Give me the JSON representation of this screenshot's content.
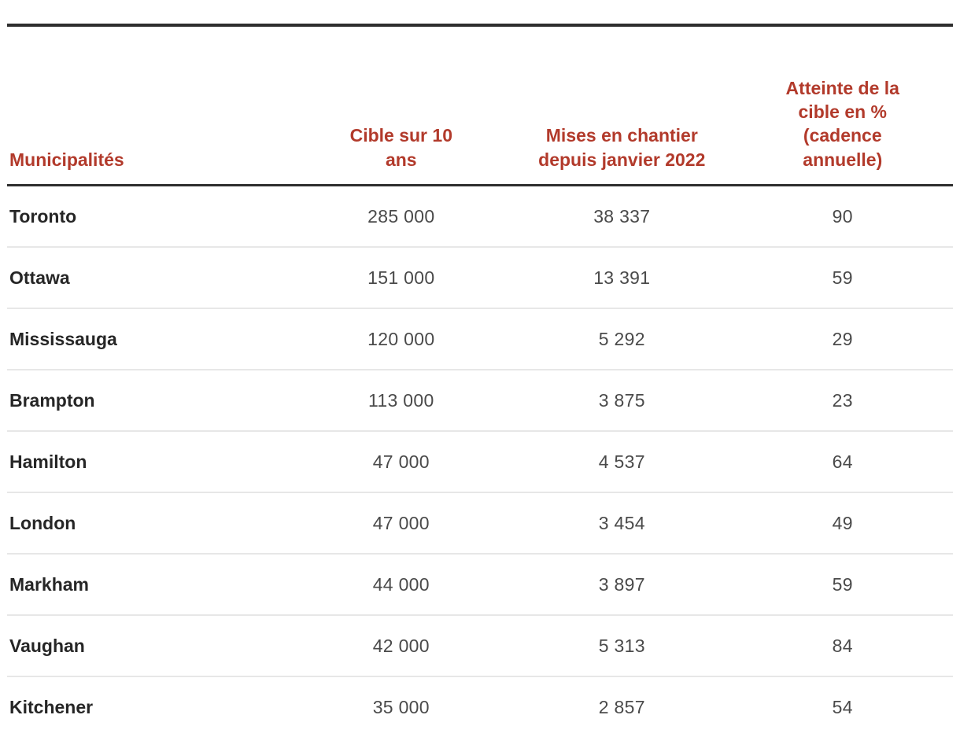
{
  "colors": {
    "header_text": "#b23a2b",
    "heavy_rule": "#2e2e2e",
    "row_divider": "#e7e7e7",
    "municipality_text": "#262626",
    "number_text": "#4a4a4a",
    "background": "#ffffff"
  },
  "table": {
    "columns": [
      "Municipalités",
      "Cible sur 10 ans",
      "Mises en chantier depuis janvier 2022",
      "Atteinte de la cible en % (cadence annuelle)"
    ],
    "rows": [
      [
        "Toronto",
        "285 000",
        "38 337",
        "90"
      ],
      [
        "Ottawa",
        "151 000",
        "13 391",
        "59"
      ],
      [
        "Mississauga",
        "120 000",
        "5 292",
        "29"
      ],
      [
        "Brampton",
        "113 000",
        "3 875",
        "23"
      ],
      [
        "Hamilton",
        "47 000",
        "4 537",
        "64"
      ],
      [
        "London",
        "47 000",
        "3 454",
        "49"
      ],
      [
        "Markham",
        "44 000",
        "3 897",
        "59"
      ],
      [
        "Vaughan",
        "42 000",
        "5 313",
        "84"
      ],
      [
        "Kitchener",
        "35 000",
        "2 857",
        "54"
      ]
    ]
  },
  "chart_data": {
    "type": "table",
    "title": "",
    "columns": [
      "Municipalités",
      "Cible sur 10 ans",
      "Mises en chantier depuis janvier 2022",
      "Atteinte de la cible en % (cadence annuelle)"
    ],
    "rows": [
      {
        "municipalite": "Toronto",
        "cible_10_ans": 285000,
        "mises_en_chantier_depuis_janvier_2022": 38337,
        "atteinte_cible_pct_cadence_annuelle": 90
      },
      {
        "municipalite": "Ottawa",
        "cible_10_ans": 151000,
        "mises_en_chantier_depuis_janvier_2022": 13391,
        "atteinte_cible_pct_cadence_annuelle": 59
      },
      {
        "municipalite": "Mississauga",
        "cible_10_ans": 120000,
        "mises_en_chantier_depuis_janvier_2022": 5292,
        "atteinte_cible_pct_cadence_annuelle": 29
      },
      {
        "municipalite": "Brampton",
        "cible_10_ans": 113000,
        "mises_en_chantier_depuis_janvier_2022": 3875,
        "atteinte_cible_pct_cadence_annuelle": 23
      },
      {
        "municipalite": "Hamilton",
        "cible_10_ans": 47000,
        "mises_en_chantier_depuis_janvier_2022": 4537,
        "atteinte_cible_pct_cadence_annuelle": 64
      },
      {
        "municipalite": "London",
        "cible_10_ans": 47000,
        "mises_en_chantier_depuis_janvier_2022": 3454,
        "atteinte_cible_pct_cadence_annuelle": 49
      },
      {
        "municipalite": "Markham",
        "cible_10_ans": 44000,
        "mises_en_chantier_depuis_janvier_2022": 3897,
        "atteinte_cible_pct_cadence_annuelle": 59
      },
      {
        "municipalite": "Vaughan",
        "cible_10_ans": 42000,
        "mises_en_chantier_depuis_janvier_2022": 5313,
        "atteinte_cible_pct_cadence_annuelle": 84
      },
      {
        "municipalite": "Kitchener",
        "cible_10_ans": 35000,
        "mises_en_chantier_depuis_janvier_2022": 2857,
        "atteinte_cible_pct_cadence_annuelle": 54
      }
    ]
  }
}
